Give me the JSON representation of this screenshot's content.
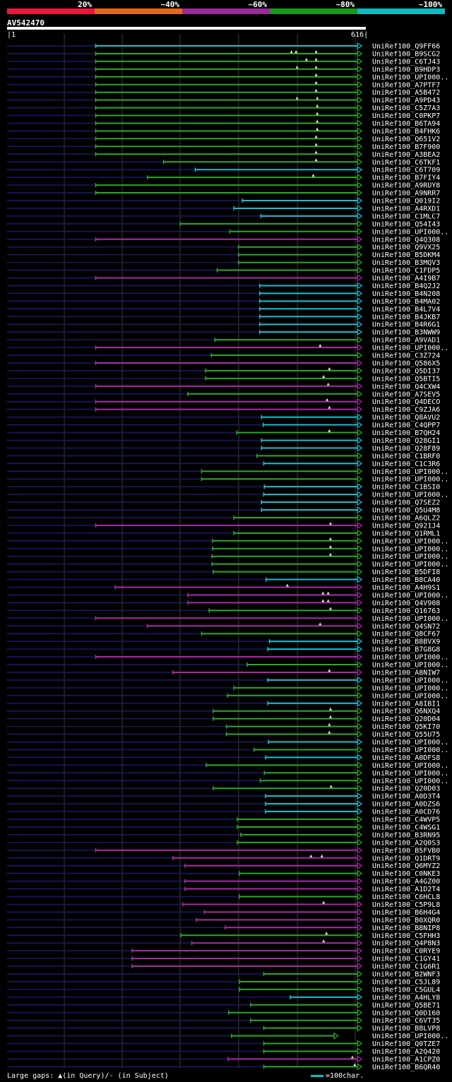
{
  "legend": {
    "segments": [
      {
        "label": "20%",
        "color": "#e8193c"
      },
      {
        "label": "~40%",
        "color": "#e06a1c"
      },
      {
        "label": "~60%",
        "color": "#9a2a9a"
      },
      {
        "label": "~80%",
        "color": "#1a9a1a"
      },
      {
        "label": "~100%",
        "color": "#10b8c0"
      }
    ]
  },
  "query": {
    "id": "AV542470",
    "start": "1",
    "end": "616",
    "length": 616
  },
  "colors": {
    "c": "#18c0d0",
    "g": "#2aa82a",
    "p": "#a82aa8",
    "dim": "#1a1a6a",
    "grid": "#3a3a3a",
    "mark": "#e8e8b0"
  },
  "hits": [
    {
      "name": "UniRef100_Q9FF66",
      "start": 155,
      "color": "c",
      "marks": []
    },
    {
      "name": "UniRef100_B9SCG2",
      "start": 155,
      "color": "g",
      "marks": [
        495,
        503,
        538
      ]
    },
    {
      "name": "UniRef100_C6TJ43",
      "start": 155,
      "color": "g",
      "marks": [
        521,
        538
      ]
    },
    {
      "name": "UniRef100_B9HDP3",
      "start": 155,
      "color": "g",
      "marks": [
        505,
        538
      ]
    },
    {
      "name": "UniRef100_UPI000..",
      "start": 155,
      "color": "g",
      "marks": [
        538
      ]
    },
    {
      "name": "UniRef100_A7PTF7",
      "start": 155,
      "color": "g",
      "marks": [
        538
      ]
    },
    {
      "name": "UniRef100_A5B472",
      "start": 155,
      "color": "g",
      "marks": [
        538
      ]
    },
    {
      "name": "UniRef100_A9PD43",
      "start": 155,
      "color": "g",
      "marks": [
        505,
        540
      ]
    },
    {
      "name": "UniRef100_C5Z7A3",
      "start": 155,
      "color": "g",
      "marks": [
        540
      ]
    },
    {
      "name": "UniRef100_C0PKP7",
      "start": 155,
      "color": "g",
      "marks": [
        540
      ]
    },
    {
      "name": "UniRef100_B6TA94",
      "start": 155,
      "color": "g",
      "marks": [
        540
      ]
    },
    {
      "name": "UniRef100_B4FHK6",
      "start": 155,
      "color": "g",
      "marks": [
        540
      ]
    },
    {
      "name": "UniRef100_Q651V2",
      "start": 155,
      "color": "g",
      "marks": [
        538
      ]
    },
    {
      "name": "UniRef100_B7F900",
      "start": 155,
      "color": "g",
      "marks": [
        538
      ]
    },
    {
      "name": "UniRef100_A3BEA2",
      "start": 155,
      "color": "g",
      "marks": [
        538
      ]
    },
    {
      "name": "UniRef100_C6TKF1",
      "start": 273,
      "color": "g",
      "marks": [
        538
      ]
    },
    {
      "name": "UniRef100_C6T709",
      "start": 328,
      "color": "c",
      "marks": []
    },
    {
      "name": "UniRef100_B7FIY4",
      "start": 245,
      "color": "g",
      "marks": [
        533
      ]
    },
    {
      "name": "UniRef100_A9RUY8",
      "start": 155,
      "color": "g",
      "marks": []
    },
    {
      "name": "UniRef100_A9NRR7",
      "start": 155,
      "color": "g",
      "marks": []
    },
    {
      "name": "UniRef100_Q019I2",
      "start": 410,
      "color": "c",
      "marks": []
    },
    {
      "name": "UniRef100_A4RXD1",
      "start": 395,
      "color": "c",
      "marks": []
    },
    {
      "name": "UniRef100_C1MLC7",
      "start": 442,
      "color": "c",
      "marks": []
    },
    {
      "name": "UniRef100_Q54I43",
      "start": 302,
      "color": "g",
      "marks": []
    },
    {
      "name": "UniRef100_UPI000..",
      "start": 388,
      "color": "g",
      "marks": []
    },
    {
      "name": "UniRef100_Q4Q308",
      "start": 155,
      "color": "p",
      "marks": []
    },
    {
      "name": "UniRef100_Q9VX25",
      "start": 403,
      "color": "g",
      "marks": []
    },
    {
      "name": "UniRef100_B5DKM4",
      "start": 403,
      "color": "g",
      "marks": []
    },
    {
      "name": "UniRef100_B3MQV3",
      "start": 403,
      "color": "g",
      "marks": []
    },
    {
      "name": "UniRef100_C1FDP5",
      "start": 366,
      "color": "g",
      "marks": []
    },
    {
      "name": "UniRef100_A4I9B7",
      "start": 155,
      "color": "p",
      "marks": []
    },
    {
      "name": "UniRef100_B4Q2J2",
      "start": 440,
      "color": "c",
      "marks": []
    },
    {
      "name": "UniRef100_B4N208",
      "start": 440,
      "color": "c",
      "marks": []
    },
    {
      "name": "UniRef100_B4MA02",
      "start": 440,
      "color": "c",
      "marks": []
    },
    {
      "name": "UniRef100_B4L7V4",
      "start": 440,
      "color": "c",
      "marks": []
    },
    {
      "name": "UniRef100_B4JKB7",
      "start": 440,
      "color": "c",
      "marks": []
    },
    {
      "name": "UniRef100_B4R6G1",
      "start": 440,
      "color": "c",
      "marks": []
    },
    {
      "name": "UniRef100_B3NWW9",
      "start": 440,
      "color": "c",
      "marks": []
    },
    {
      "name": "UniRef100_A9VAD1",
      "start": 362,
      "color": "g",
      "marks": []
    },
    {
      "name": "UniRef100_UPI000..",
      "start": 155,
      "color": "p",
      "marks": [
        545
      ]
    },
    {
      "name": "UniRef100_C3Z724",
      "start": 356,
      "color": "g",
      "marks": []
    },
    {
      "name": "UniRef100_Q586X5",
      "start": 155,
      "color": "p",
      "marks": []
    },
    {
      "name": "UniRef100_Q5DI37",
      "start": 346,
      "color": "g",
      "marks": [
        561
      ]
    },
    {
      "name": "UniRef100_Q5BTI5",
      "start": 346,
      "color": "g",
      "marks": [
        551
      ]
    },
    {
      "name": "UniRef100_Q4CXW4",
      "start": 155,
      "color": "p",
      "marks": [
        559
      ]
    },
    {
      "name": "UniRef100_A7SEV5",
      "start": 315,
      "color": "g",
      "marks": []
    },
    {
      "name": "UniRef100_Q4DECO",
      "start": 155,
      "color": "p",
      "marks": [
        557
      ]
    },
    {
      "name": "UniRef100_C9ZJA6",
      "start": 155,
      "color": "p",
      "marks": [
        561
      ]
    },
    {
      "name": "UniRef100_Q8AVU2",
      "start": 443,
      "color": "c",
      "marks": []
    },
    {
      "name": "UniRef100_C4QPP7",
      "start": 446,
      "color": "c",
      "marks": []
    },
    {
      "name": "UniRef100_B7QH24",
      "start": 400,
      "color": "g",
      "marks": [
        561
      ]
    },
    {
      "name": "UniRef100_Q28GI1",
      "start": 443,
      "color": "c",
      "marks": []
    },
    {
      "name": "UniRef100_Q28F89",
      "start": 443,
      "color": "c",
      "marks": []
    },
    {
      "name": "UniRef100_C1BRF0",
      "start": 435,
      "color": "g",
      "marks": []
    },
    {
      "name": "UniRef100_C1C3R6",
      "start": 447,
      "color": "c",
      "marks": []
    },
    {
      "name": "UniRef100_UPI000..",
      "start": 339,
      "color": "g",
      "marks": []
    },
    {
      "name": "UniRef100_UPI000..",
      "start": 339,
      "color": "g",
      "marks": []
    },
    {
      "name": "UniRef100_C1BSI0",
      "start": 448,
      "color": "c",
      "marks": []
    },
    {
      "name": "UniRef100_UPI000..",
      "start": 447,
      "color": "c",
      "marks": []
    },
    {
      "name": "UniRef100_Q7SEZ2",
      "start": 443,
      "color": "c",
      "marks": []
    },
    {
      "name": "UniRef100_Q5U4M8",
      "start": 443,
      "color": "c",
      "marks": []
    },
    {
      "name": "UniRef100_A6QLZ2",
      "start": 395,
      "color": "g",
      "marks": []
    },
    {
      "name": "UniRef100_Q921J4",
      "start": 155,
      "color": "p",
      "marks": [
        563
      ]
    },
    {
      "name": "UniRef100_Q1RML1",
      "start": 395,
      "color": "g",
      "marks": []
    },
    {
      "name": "UniRef100_UPI000..",
      "start": 358,
      "color": "g",
      "marks": [
        563
      ]
    },
    {
      "name": "UniRef100_UPI000..",
      "start": 358,
      "color": "g",
      "marks": [
        563
      ]
    },
    {
      "name": "UniRef100_UPI000..",
      "start": 357,
      "color": "g",
      "marks": [
        563
      ]
    },
    {
      "name": "UniRef100_UPI000..",
      "start": 357,
      "color": "g",
      "marks": []
    },
    {
      "name": "UniRef100_B5DFI8",
      "start": 359,
      "color": "g",
      "marks": []
    },
    {
      "name": "UniRef100_B8CA40",
      "start": 451,
      "color": "c",
      "marks": []
    },
    {
      "name": "UniRef100_A4H9S1",
      "start": 189,
      "color": "p",
      "marks": [
        488
      ]
    },
    {
      "name": "UniRef100_UPI000..",
      "start": 315,
      "color": "p",
      "marks": [
        550,
        559
      ]
    },
    {
      "name": "UniRef100_Q4V908",
      "start": 315,
      "color": "p",
      "marks": [
        550,
        559
      ]
    },
    {
      "name": "UniRef100_Q16763",
      "start": 352,
      "color": "g",
      "marks": [
        563
      ]
    },
    {
      "name": "UniRef100_UPI000..",
      "start": 155,
      "color": "p",
      "marks": []
    },
    {
      "name": "UniRef100_Q4SN72",
      "start": 245,
      "color": "p",
      "marks": [
        545
      ]
    },
    {
      "name": "UniRef100_Q8CF67",
      "start": 339,
      "color": "g",
      "marks": []
    },
    {
      "name": "UniRef100_B8BVX9",
      "start": 457,
      "color": "c",
      "marks": []
    },
    {
      "name": "UniRef100_B7G8G8",
      "start": 454,
      "color": "c",
      "marks": []
    },
    {
      "name": "UniRef100_UPI000..",
      "start": 155,
      "color": "p",
      "marks": []
    },
    {
      "name": "UniRef100_UPI000..",
      "start": 418,
      "color": "g",
      "marks": []
    },
    {
      "name": "UniRef100_A8NIW7",
      "start": 289,
      "color": "p",
      "marks": [
        561
      ]
    },
    {
      "name": "UniRef100_UPI000..",
      "start": 454,
      "color": "c",
      "marks": []
    },
    {
      "name": "UniRef100_UPI000..",
      "start": 395,
      "color": "g",
      "marks": []
    },
    {
      "name": "UniRef100_UPI000..",
      "start": 384,
      "color": "g",
      "marks": []
    },
    {
      "name": "UniRef100_A8IBI1",
      "start": 454,
      "color": "c",
      "marks": []
    },
    {
      "name": "UniRef100_Q6NXQ4",
      "start": 359,
      "color": "g",
      "marks": [
        563
      ]
    },
    {
      "name": "UniRef100_Q20D04",
      "start": 359,
      "color": "g",
      "marks": [
        563
      ]
    },
    {
      "name": "UniRef100_Q5KI70",
      "start": 382,
      "color": "g",
      "marks": [
        561
      ]
    },
    {
      "name": "UniRef100_Q55U75",
      "start": 382,
      "color": "g",
      "marks": [
        561
      ]
    },
    {
      "name": "UniRef100_UPI000..",
      "start": 455,
      "color": "c",
      "marks": []
    },
    {
      "name": "UniRef100_UPI000..",
      "start": 430,
      "color": "g",
      "marks": []
    },
    {
      "name": "UniRef100_A0DFS8",
      "start": 450,
      "color": "c",
      "marks": []
    },
    {
      "name": "UniRef100_UPI000..",
      "start": 347,
      "color": "g",
      "marks": []
    },
    {
      "name": "UniRef100_UPI000..",
      "start": 448,
      "color": "g",
      "marks": []
    },
    {
      "name": "UniRef100_UPI000..",
      "start": 441,
      "color": "g",
      "marks": []
    },
    {
      "name": "UniRef100_Q20D03",
      "start": 359,
      "color": "g",
      "marks": [
        564
      ]
    },
    {
      "name": "UniRef100_A0D3T4",
      "start": 450,
      "color": "c",
      "marks": []
    },
    {
      "name": "UniRef100_A0DZS6",
      "start": 450,
      "color": "c",
      "marks": []
    },
    {
      "name": "UniRef100_A0CD76",
      "start": 450,
      "color": "c",
      "marks": []
    },
    {
      "name": "UniRef100_C4WVP5",
      "start": 401,
      "color": "g",
      "marks": []
    },
    {
      "name": "UniRef100_C4WSG1",
      "start": 401,
      "color": "g",
      "marks": []
    },
    {
      "name": "UniRef100_B3RN95",
      "start": 407,
      "color": "g",
      "marks": []
    },
    {
      "name": "UniRef100_A2Q0S3",
      "start": 401,
      "color": "g",
      "marks": []
    },
    {
      "name": "UniRef100_B5FVB0",
      "start": 155,
      "color": "p",
      "marks": []
    },
    {
      "name": "UniRef100_Q1DRT9",
      "start": 289,
      "color": "p",
      "marks": [
        529,
        548
      ]
    },
    {
      "name": "UniRef100_Q6MYZ2",
      "start": 310,
      "color": "p",
      "marks": []
    },
    {
      "name": "UniRef100_C0NKE3",
      "start": 405,
      "color": "g",
      "marks": []
    },
    {
      "name": "UniRef100_A4GZ00",
      "start": 310,
      "color": "p",
      "marks": []
    },
    {
      "name": "UniRef100_A1D2T4",
      "start": 310,
      "color": "p",
      "marks": []
    },
    {
      "name": "UniRef100_C6HCL8",
      "start": 405,
      "color": "g",
      "marks": []
    },
    {
      "name": "UniRef100_C5P9L8",
      "start": 306,
      "color": "p",
      "marks": [
        551
      ]
    },
    {
      "name": "UniRef100_B6H4G4",
      "start": 344,
      "color": "p",
      "marks": []
    },
    {
      "name": "UniRef100_B0XQR0",
      "start": 330,
      "color": "p",
      "marks": []
    },
    {
      "name": "UniRef100_B8NIP8",
      "start": 380,
      "color": "p",
      "marks": []
    },
    {
      "name": "UniRef100_C5FHH3",
      "start": 303,
      "color": "g",
      "marks": [
        556
      ]
    },
    {
      "name": "UniRef100_Q4P8N3",
      "start": 322,
      "color": "p",
      "marks": [
        551
      ]
    },
    {
      "name": "UniRef100_C0RYE9",
      "start": 218,
      "color": "p",
      "marks": []
    },
    {
      "name": "UniRef100_C1GY41",
      "start": 218,
      "color": "p",
      "marks": []
    },
    {
      "name": "UniRef100_C1G6R1",
      "start": 218,
      "color": "p",
      "marks": []
    },
    {
      "name": "UniRef100_B2WNF3",
      "start": 447,
      "color": "g",
      "marks": []
    },
    {
      "name": "UniRef100_C5JL89",
      "start": 405,
      "color": "g",
      "marks": []
    },
    {
      "name": "UniRef100_C5GUL4",
      "start": 405,
      "color": "g",
      "marks": []
    },
    {
      "name": "UniRef100_A4HLY8",
      "start": 493,
      "color": "c",
      "marks": []
    },
    {
      "name": "UniRef100_Q5BE71",
      "start": 424,
      "color": "g",
      "marks": []
    },
    {
      "name": "UniRef100_Q0D160",
      "start": 386,
      "color": "g",
      "marks": []
    },
    {
      "name": "UniRef100_C6VT35",
      "start": 424,
      "color": "g",
      "marks": []
    },
    {
      "name": "UniRef100_B8LVP8",
      "start": 447,
      "color": "g",
      "marks": []
    },
    {
      "name": "UniRef100_UPI000..",
      "start": 391,
      "color": "g",
      "marks": [],
      "end": 575
    },
    {
      "name": "UniRef100_Q0TZE7",
      "start": 447,
      "color": "g",
      "marks": []
    },
    {
      "name": "UniRef100_A2Q420",
      "start": 447,
      "color": "g",
      "marks": []
    },
    {
      "name": "UniRef100_A1CPZ0",
      "start": 385,
      "color": "p",
      "marks": [
        601
      ]
    },
    {
      "name": "UniRef100_B6QR40",
      "start": 447,
      "color": "g",
      "marks": [
        605
      ]
    }
  ],
  "footer": {
    "gaps": "Large gaps: ▲(in Query)/- (in Subject)",
    "scale": "=100char."
  }
}
